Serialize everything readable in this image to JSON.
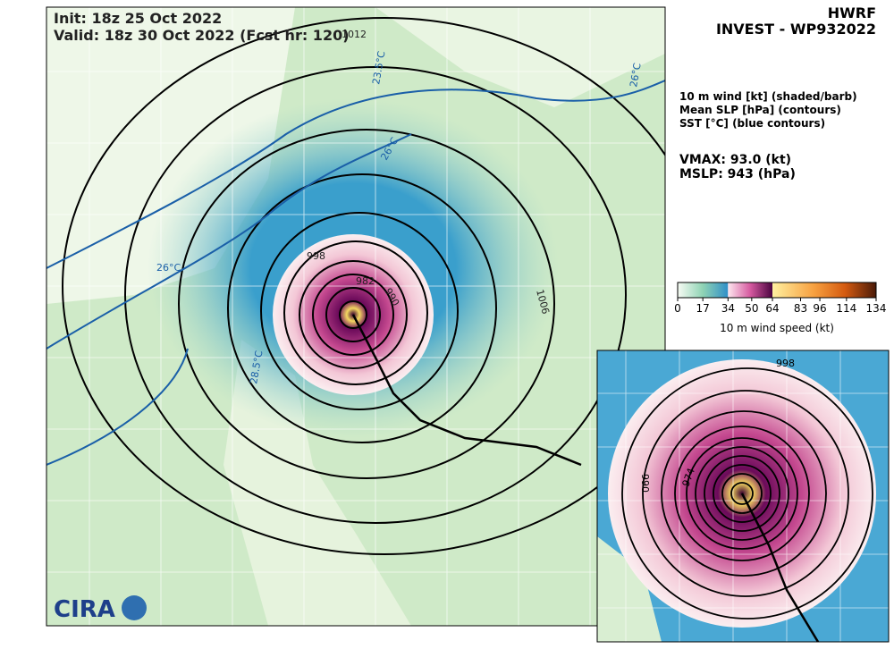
{
  "header": {
    "init": "Init: 18z 25 Oct 2022",
    "valid": "Valid: 18z 30 Oct 2022 (Fcst hr: 120)",
    "model": "HWRF",
    "storm": "INVEST - WP932022"
  },
  "legend": {
    "lines": [
      "10 m wind [kt] (shaded/barb)",
      "Mean SLP [hPa] (contours)",
      "SST [°C] (blue contours)"
    ],
    "vmax": "VMAX:  93.0 (kt)",
    "mslp": "MSLP:  943 (hPa)"
  },
  "colorbar": {
    "ticks": [
      0,
      17,
      34,
      50,
      64,
      83,
      96,
      114,
      134
    ],
    "label": "10 m wind speed (kt)"
  },
  "map": {
    "contour_labels": [
      "1012",
      "998",
      "990",
      "982",
      "1006",
      "23.5°C",
      "26°C",
      "26°C",
      "28.5°C",
      "26°C"
    ],
    "logo": "CIRA"
  },
  "inset": {
    "contour_labels": [
      "998",
      "990",
      "974"
    ]
  }
}
